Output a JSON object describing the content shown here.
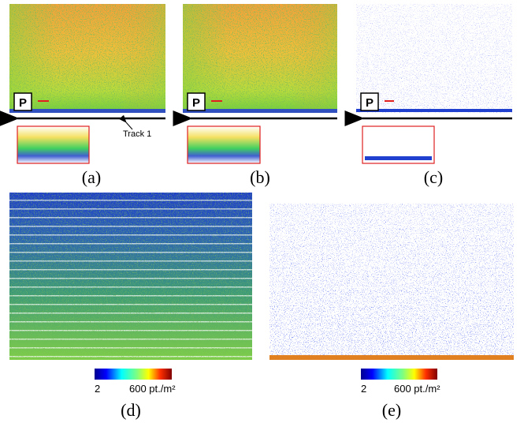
{
  "panels": [
    {
      "label": "(a)",
      "marker": "P",
      "annotation": "Track 1"
    },
    {
      "label": "(b)",
      "marker": "P"
    },
    {
      "label": "(c)",
      "marker": "P"
    },
    {
      "label": "(d)"
    },
    {
      "label": "(e)"
    }
  ],
  "colorbars": [
    {
      "min": 2,
      "max": "600 pt./m²"
    },
    {
      "min": 2,
      "max": "600 pt./m²"
    }
  ]
}
